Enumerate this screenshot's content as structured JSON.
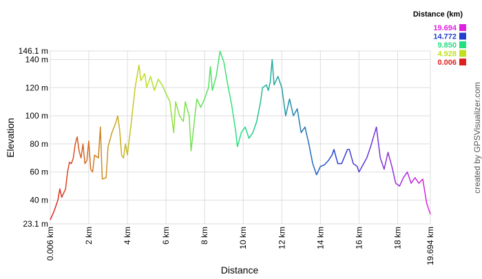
{
  "chart_data": {
    "type": "line",
    "x_label": "Distance",
    "y_label": "Elevation",
    "credit": "created by GPSVisualizer.com",
    "legend_title": "Distance (km)",
    "color_scale": [
      {
        "value": 19.694,
        "label": "19.694",
        "color": "#e020e0"
      },
      {
        "value": 14.772,
        "label": "14.772",
        "color": "#2040d0"
      },
      {
        "value": 9.85,
        "label": "9.850",
        "color": "#20e080"
      },
      {
        "value": 4.928,
        "label": "4.928",
        "color": "#c0e020"
      },
      {
        "value": 0.006,
        "label": "0.006",
        "color": "#dd2020"
      }
    ],
    "xlim": [
      0.006,
      19.694
    ],
    "ylim": [
      23.1,
      146.1
    ],
    "xticks": [
      {
        "value": 0.006,
        "label": "0.006 km"
      },
      {
        "value": 2,
        "label": "2 km"
      },
      {
        "value": 4,
        "label": "4 km"
      },
      {
        "value": 6,
        "label": "6 km"
      },
      {
        "value": 8,
        "label": "8 km"
      },
      {
        "value": 10,
        "label": "10 km"
      },
      {
        "value": 12,
        "label": "12 km"
      },
      {
        "value": 14,
        "label": "14 km"
      },
      {
        "value": 16,
        "label": "16 km"
      },
      {
        "value": 18,
        "label": "18 km"
      },
      {
        "value": 19.694,
        "label": "19.694 km"
      }
    ],
    "yticks": [
      {
        "value": 23.1,
        "label": "23.1 m"
      },
      {
        "value": 40,
        "label": "40 m"
      },
      {
        "value": 60,
        "label": "60 m"
      },
      {
        "value": 80,
        "label": "80 m"
      },
      {
        "value": 100,
        "label": "100 m"
      },
      {
        "value": 120,
        "label": "120 m"
      },
      {
        "value": 140,
        "label": "140 m"
      },
      {
        "value": 146.1,
        "label": "146.1 m"
      }
    ],
    "grid": true,
    "x": [
      0.006,
      0.2,
      0.4,
      0.5,
      0.6,
      0.8,
      0.9,
      1.0,
      1.1,
      1.2,
      1.3,
      1.4,
      1.5,
      1.6,
      1.7,
      1.8,
      1.9,
      2.0,
      2.1,
      2.2,
      2.3,
      2.5,
      2.6,
      2.7,
      2.9,
      3.0,
      3.2,
      3.4,
      3.5,
      3.6,
      3.7,
      3.8,
      3.9,
      4.0,
      4.2,
      4.4,
      4.6,
      4.7,
      4.9,
      5.0,
      5.2,
      5.4,
      5.6,
      5.8,
      6.0,
      6.2,
      6.4,
      6.5,
      6.7,
      6.9,
      7.0,
      7.2,
      7.3,
      7.5,
      7.6,
      7.8,
      8.0,
      8.2,
      8.3,
      8.4,
      8.6,
      8.8,
      9.0,
      9.2,
      9.4,
      9.6,
      9.7,
      9.9,
      10.1,
      10.3,
      10.5,
      10.7,
      10.9,
      11.0,
      11.2,
      11.3,
      11.4,
      11.5,
      11.6,
      11.8,
      12.0,
      12.2,
      12.4,
      12.6,
      12.8,
      13.0,
      13.2,
      13.4,
      13.6,
      13.8,
      14.0,
      14.2,
      14.4,
      14.6,
      14.7,
      14.9,
      15.1,
      15.4,
      15.5,
      15.7,
      15.9,
      16.0,
      16.2,
      16.4,
      16.6,
      16.9,
      17.1,
      17.3,
      17.5,
      17.7,
      17.9,
      18.1,
      18.3,
      18.5,
      18.7,
      18.9,
      19.1,
      19.3,
      19.5,
      19.694
    ],
    "values": [
      26,
      32,
      40,
      48,
      42,
      48,
      60,
      67,
      66,
      70,
      80,
      85,
      75,
      70,
      80,
      66,
      68,
      82,
      62,
      60,
      72,
      70,
      92,
      55,
      56,
      78,
      88,
      95,
      100,
      90,
      72,
      70,
      80,
      72,
      95,
      120,
      136,
      125,
      130,
      120,
      128,
      118,
      126,
      122,
      116,
      110,
      88,
      110,
      100,
      96,
      110,
      100,
      75,
      100,
      112,
      106,
      112,
      120,
      135,
      118,
      128,
      146,
      138,
      122,
      108,
      90,
      78,
      88,
      92,
      84,
      88,
      96,
      110,
      120,
      122,
      118,
      124,
      140,
      122,
      128,
      120,
      100,
      112,
      100,
      105,
      88,
      92,
      80,
      66,
      58,
      64,
      65,
      68,
      72,
      76,
      66,
      66,
      76,
      76,
      66,
      64,
      60,
      65,
      70,
      78,
      92,
      70,
      62,
      74,
      64,
      52,
      50,
      56,
      60,
      52,
      56,
      52,
      55,
      38,
      30
    ]
  }
}
